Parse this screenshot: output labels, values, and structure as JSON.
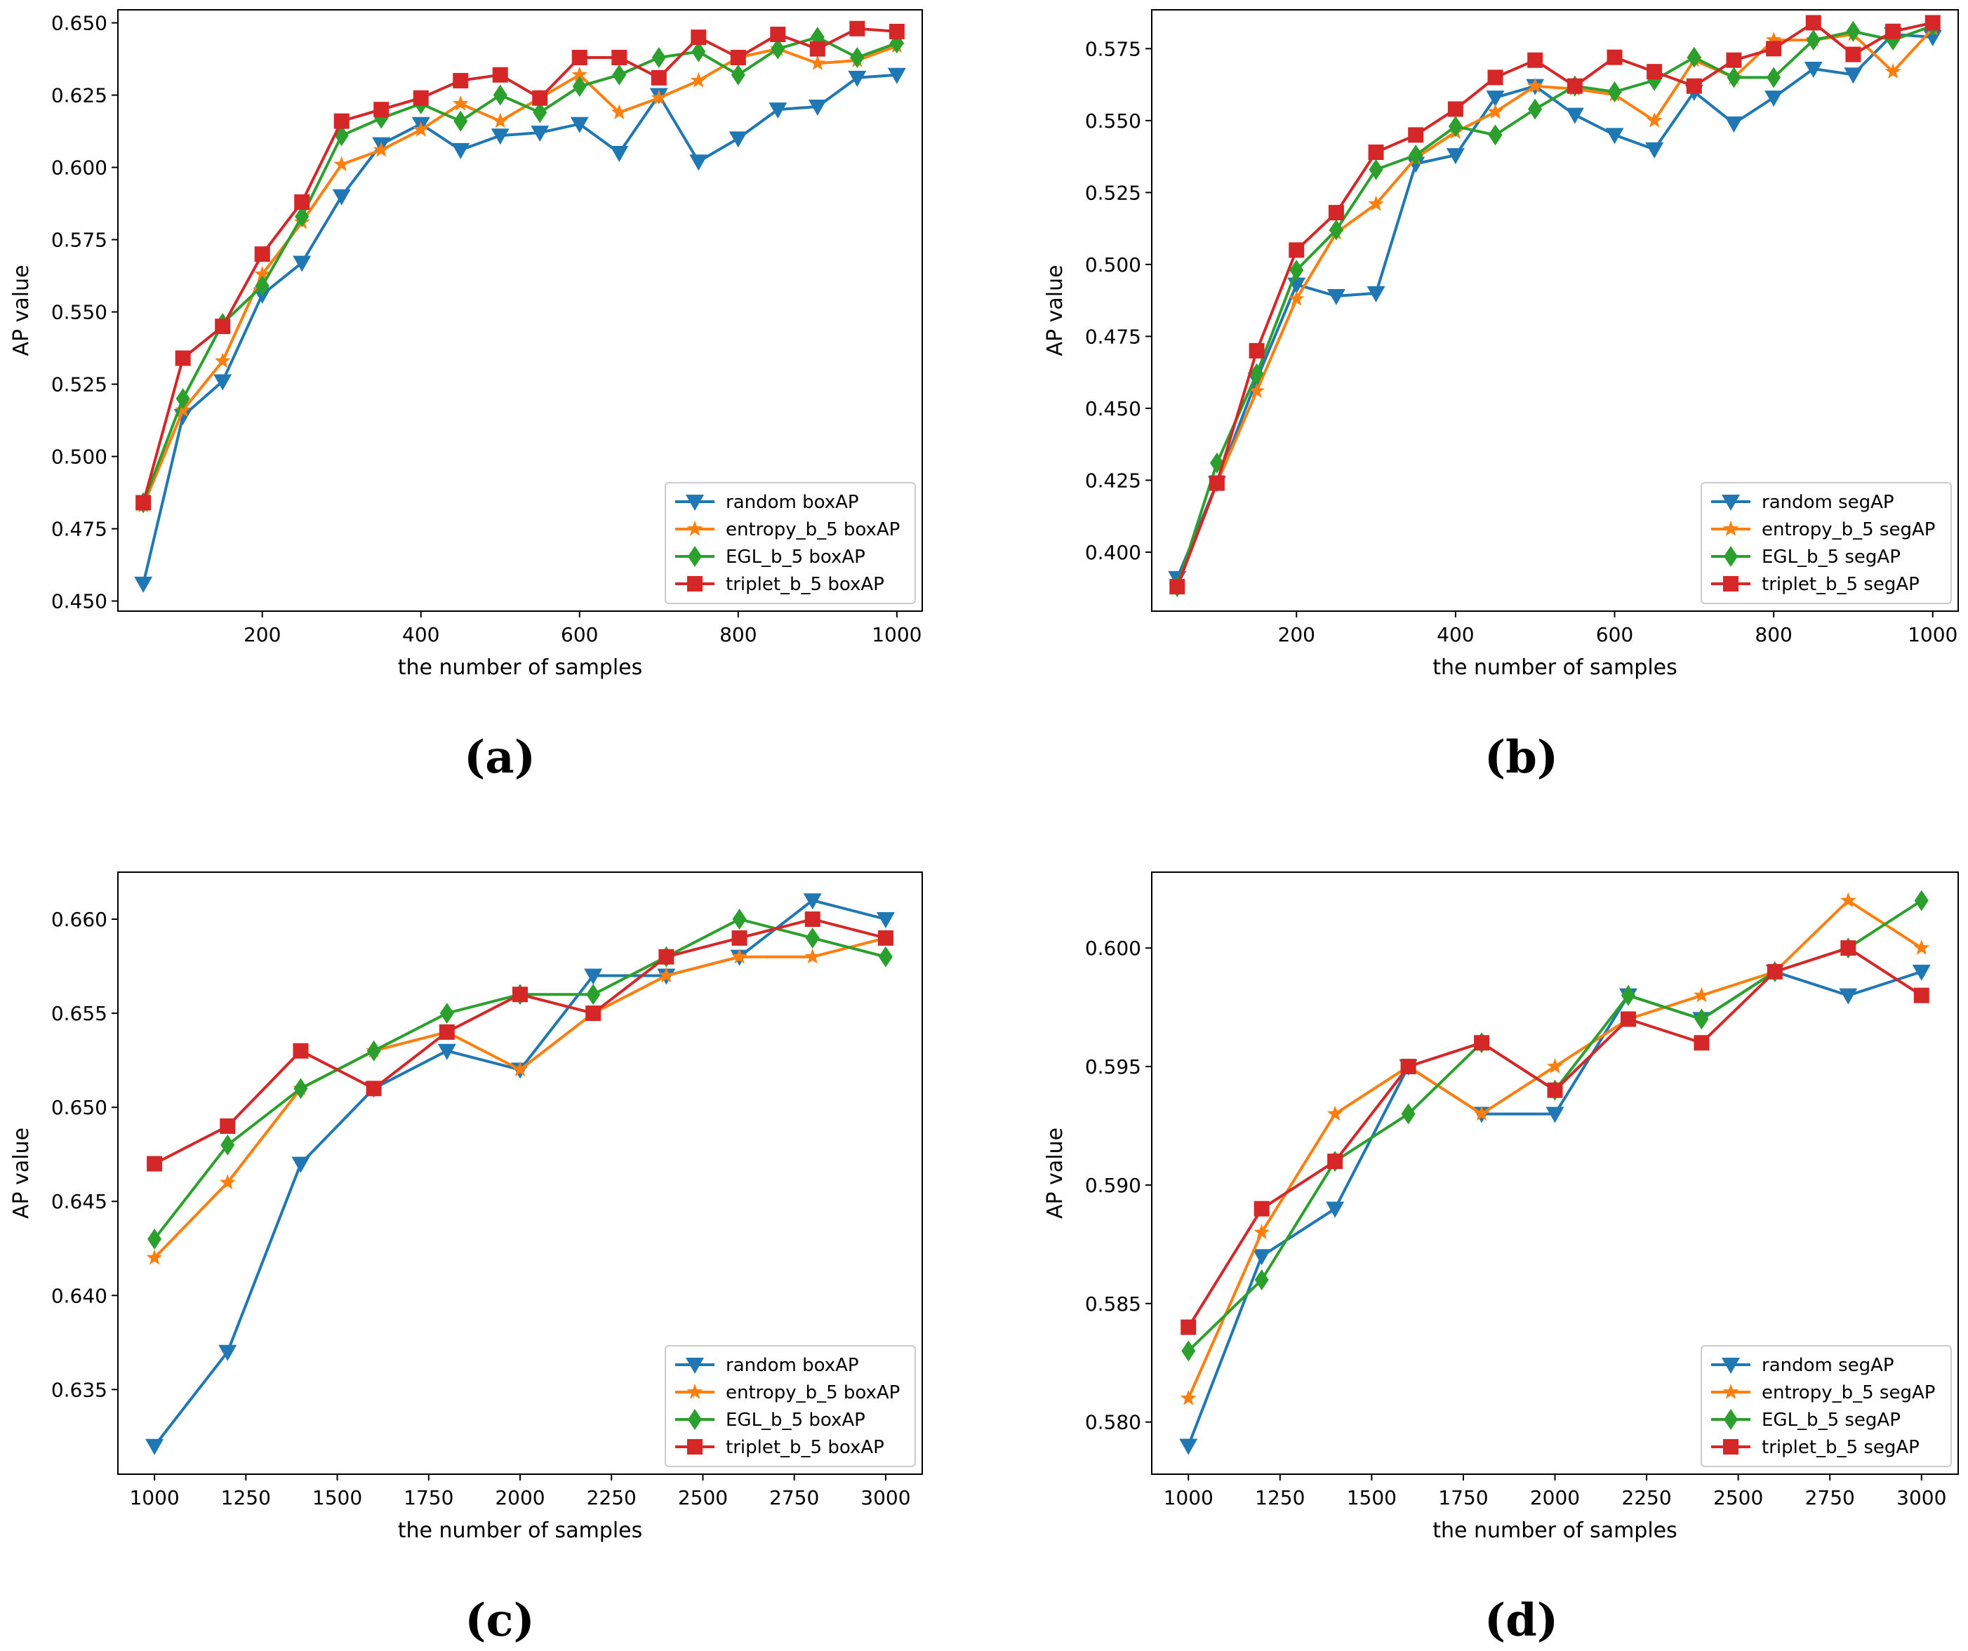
{
  "chart_data": [
    {
      "type": "line",
      "panel_label": "(a)",
      "xlabel": "the number of samples",
      "ylabel": "AP value",
      "xlim": [
        18,
        1032
      ],
      "ylim": [
        0.4465,
        0.6545
      ],
      "xticks": [
        200,
        400,
        600,
        800,
        1000
      ],
      "yticks": [
        0.45,
        0.475,
        0.5,
        0.525,
        0.55,
        0.575,
        0.6,
        0.625,
        0.65
      ],
      "xtick_labels": [
        "200",
        "400",
        "600",
        "800",
        "1000"
      ],
      "ytick_labels": [
        "0.450",
        "0.475",
        "0.500",
        "0.525",
        "0.550",
        "0.575",
        "0.600",
        "0.625",
        "0.650"
      ],
      "legend_position": "lower-right",
      "x": [
        50,
        100,
        150,
        200,
        250,
        300,
        350,
        400,
        450,
        500,
        550,
        600,
        650,
        700,
        750,
        800,
        850,
        900,
        950,
        1000
      ],
      "series": [
        {
          "name": "random boxAP",
          "color": "#1f77b4",
          "marker": "triangle-down",
          "values": [
            0.456,
            0.514,
            0.526,
            0.556,
            0.567,
            0.59,
            0.608,
            0.615,
            0.606,
            0.611,
            0.612,
            0.615,
            0.605,
            0.625,
            0.602,
            0.61,
            0.62,
            0.621,
            0.631,
            0.632
          ]
        },
        {
          "name": "entropy_b_5 boxAP",
          "color": "#ff7f0e",
          "marker": "star",
          "values": [
            0.483,
            0.516,
            0.533,
            0.563,
            0.581,
            0.601,
            0.606,
            0.613,
            0.622,
            0.616,
            0.624,
            0.632,
            0.619,
            0.624,
            0.63,
            0.638,
            0.641,
            0.636,
            0.637,
            0.642
          ]
        },
        {
          "name": "EGL_b_5 boxAP",
          "color": "#2ca02c",
          "marker": "diamond",
          "values": [
            0.484,
            0.52,
            0.546,
            0.559,
            0.583,
            0.611,
            0.617,
            0.622,
            0.616,
            0.625,
            0.619,
            0.628,
            0.632,
            0.638,
            0.64,
            0.632,
            0.641,
            0.645,
            0.638,
            0.643
          ]
        },
        {
          "name": "triplet_b_5 boxAP",
          "color": "#d62728",
          "marker": "square",
          "values": [
            0.484,
            0.534,
            0.545,
            0.57,
            0.588,
            0.616,
            0.62,
            0.624,
            0.63,
            0.632,
            0.624,
            0.638,
            0.638,
            0.631,
            0.645,
            0.638,
            0.646,
            0.641,
            0.648,
            0.647
          ]
        }
      ]
    },
    {
      "type": "line",
      "panel_label": "(b)",
      "xlabel": "the number of samples",
      "ylabel": "AP value",
      "xlim": [
        18,
        1032
      ],
      "ylim": [
        0.3795,
        0.5885
      ],
      "xticks": [
        200,
        400,
        600,
        800,
        1000
      ],
      "yticks": [
        0.4,
        0.425,
        0.45,
        0.475,
        0.5,
        0.525,
        0.55,
        0.575
      ],
      "xtick_labels": [
        "200",
        "400",
        "600",
        "800",
        "1000"
      ],
      "ytick_labels": [
        "0.400",
        "0.425",
        "0.450",
        "0.475",
        "0.500",
        "0.525",
        "0.550",
        "0.575"
      ],
      "legend_position": "lower-right",
      "x": [
        50,
        100,
        150,
        200,
        250,
        300,
        350,
        400,
        450,
        500,
        550,
        600,
        650,
        700,
        750,
        800,
        850,
        900,
        950,
        1000
      ],
      "series": [
        {
          "name": "random segAP",
          "color": "#1f77b4",
          "marker": "triangle-down",
          "values": [
            0.391,
            0.424,
            0.46,
            0.493,
            0.489,
            0.49,
            0.535,
            0.538,
            0.558,
            0.562,
            0.552,
            0.545,
            0.54,
            0.56,
            0.549,
            0.558,
            0.568,
            0.566,
            0.58,
            0.579
          ]
        },
        {
          "name": "entropy_b_5 segAP",
          "color": "#ff7f0e",
          "marker": "star",
          "values": [
            0.388,
            0.424,
            0.456,
            0.488,
            0.511,
            0.521,
            0.537,
            0.546,
            0.553,
            0.562,
            0.561,
            0.559,
            0.55,
            0.571,
            0.565,
            0.578,
            0.578,
            0.58,
            0.567,
            0.582
          ]
        },
        {
          "name": "EGL_b_5 segAP",
          "color": "#2ca02c",
          "marker": "diamond",
          "values": [
            0.388,
            0.431,
            0.462,
            0.498,
            0.512,
            0.533,
            0.538,
            0.548,
            0.545,
            0.554,
            0.562,
            0.56,
            0.564,
            0.572,
            0.565,
            0.565,
            0.578,
            0.581,
            0.578,
            0.583
          ]
        },
        {
          "name": "triplet_b_5 segAP",
          "color": "#d62728",
          "marker": "square",
          "values": [
            0.388,
            0.424,
            0.47,
            0.505,
            0.518,
            0.539,
            0.545,
            0.554,
            0.565,
            0.571,
            0.562,
            0.572,
            0.567,
            0.562,
            0.571,
            0.575,
            0.584,
            0.573,
            0.581,
            0.584
          ]
        }
      ]
    },
    {
      "type": "line",
      "panel_label": "(c)",
      "xlabel": "the number of samples",
      "ylabel": "AP value",
      "xlim": [
        900,
        3100
      ],
      "ylim": [
        0.6305,
        0.6625
      ],
      "xticks": [
        1000,
        1250,
        1500,
        1750,
        2000,
        2250,
        2500,
        2750,
        3000
      ],
      "yticks": [
        0.635,
        0.64,
        0.645,
        0.65,
        0.655,
        0.66
      ],
      "xtick_labels": [
        "1000",
        "1250",
        "1500",
        "1750",
        "2000",
        "2250",
        "2500",
        "2750",
        "3000"
      ],
      "ytick_labels": [
        "0.635",
        "0.640",
        "0.645",
        "0.650",
        "0.655",
        "0.660"
      ],
      "legend_position": "lower-right",
      "x": [
        1000,
        1200,
        1400,
        1600,
        1800,
        2000,
        2200,
        2400,
        2600,
        2800,
        3000
      ],
      "series": [
        {
          "name": "random boxAP",
          "color": "#1f77b4",
          "marker": "triangle-down",
          "values": [
            0.632,
            0.637,
            0.647,
            0.651,
            0.653,
            0.652,
            0.657,
            0.657,
            0.658,
            0.661,
            0.66
          ]
        },
        {
          "name": "entropy_b_5 boxAP",
          "color": "#ff7f0e",
          "marker": "star",
          "values": [
            0.642,
            0.646,
            0.651,
            0.653,
            0.654,
            0.652,
            0.655,
            0.657,
            0.658,
            0.658,
            0.659
          ]
        },
        {
          "name": "EGL_b_5 boxAP",
          "color": "#2ca02c",
          "marker": "diamond",
          "values": [
            0.643,
            0.648,
            0.651,
            0.653,
            0.655,
            0.656,
            0.656,
            0.658,
            0.66,
            0.659,
            0.658
          ]
        },
        {
          "name": "triplet_b_5 boxAP",
          "color": "#d62728",
          "marker": "square",
          "values": [
            0.647,
            0.649,
            0.653,
            0.651,
            0.654,
            0.656,
            0.655,
            0.658,
            0.659,
            0.66,
            0.659
          ]
        }
      ]
    },
    {
      "type": "line",
      "panel_label": "(d)",
      "xlabel": "the number of samples",
      "ylabel": "AP value",
      "xlim": [
        900,
        3100
      ],
      "ylim": [
        0.5778,
        0.6032
      ],
      "xticks": [
        1000,
        1250,
        1500,
        1750,
        2000,
        2250,
        2500,
        2750,
        3000
      ],
      "yticks": [
        0.58,
        0.585,
        0.59,
        0.595,
        0.6
      ],
      "xtick_labels": [
        "1000",
        "1250",
        "1500",
        "1750",
        "2000",
        "2250",
        "2500",
        "2750",
        "3000"
      ],
      "ytick_labels": [
        "0.580",
        "0.585",
        "0.590",
        "0.595",
        "0.600"
      ],
      "legend_position": "lower-right",
      "x": [
        1000,
        1200,
        1400,
        1600,
        1800,
        2000,
        2200,
        2400,
        2600,
        2800,
        3000
      ],
      "series": [
        {
          "name": "random segAP",
          "color": "#1f77b4",
          "marker": "triangle-down",
          "values": [
            0.579,
            0.587,
            0.589,
            0.595,
            0.593,
            0.593,
            0.598,
            0.597,
            0.599,
            0.598,
            0.599
          ]
        },
        {
          "name": "entropy_b_5 segAP",
          "color": "#ff7f0e",
          "marker": "star",
          "values": [
            0.581,
            0.588,
            0.593,
            0.595,
            0.593,
            0.595,
            0.597,
            0.598,
            0.599,
            0.602,
            0.6
          ]
        },
        {
          "name": "EGL_b_5 segAP",
          "color": "#2ca02c",
          "marker": "diamond",
          "values": [
            0.583,
            0.586,
            0.591,
            0.593,
            0.596,
            0.594,
            0.598,
            0.597,
            0.599,
            0.6,
            0.602
          ]
        },
        {
          "name": "triplet_b_5 segAP",
          "color": "#d62728",
          "marker": "square",
          "values": [
            0.584,
            0.589,
            0.591,
            0.595,
            0.596,
            0.594,
            0.597,
            0.596,
            0.599,
            0.6,
            0.598
          ]
        }
      ]
    }
  ]
}
